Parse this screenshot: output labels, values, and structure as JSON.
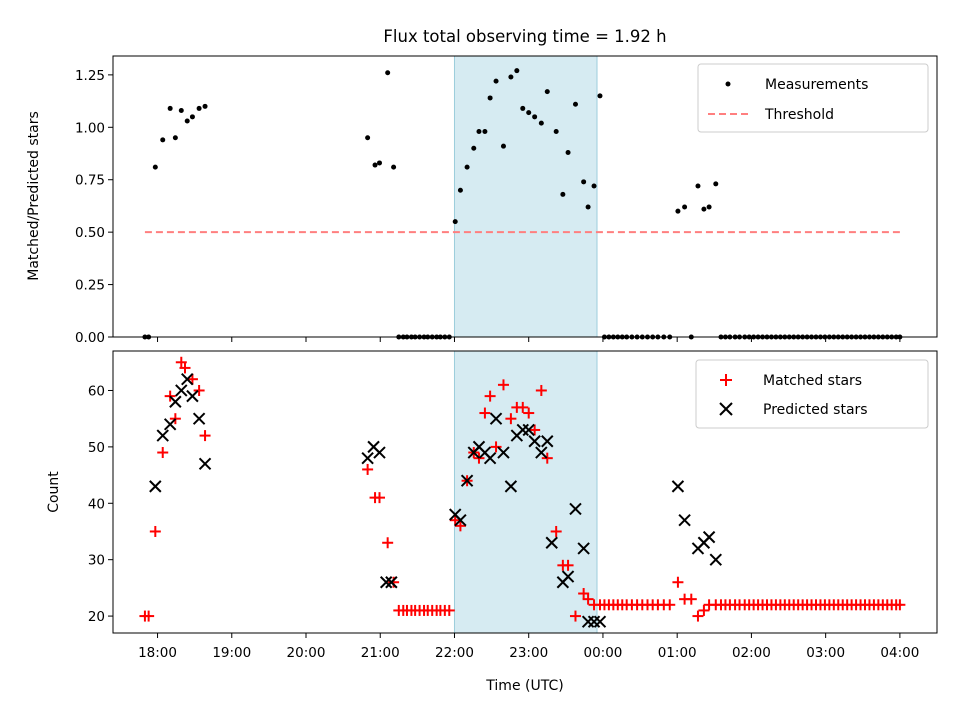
{
  "chart_data": [
    {
      "type": "scatter",
      "title": "Flux total observing time = 1.92 h",
      "ylabel": "Matched/Predicted stars",
      "xlabel": "",
      "xlim": [
        17.4,
        28.5
      ],
      "ylim": [
        0,
        1.34
      ],
      "yticks": [
        0.0,
        0.25,
        0.5,
        0.75,
        1.0,
        1.25
      ],
      "ytick_labels": [
        "0.00",
        "0.25",
        "0.50",
        "0.75",
        "1.00",
        "1.25"
      ],
      "shaded_band": [
        22.0,
        23.92
      ],
      "legend_position": "top-right",
      "series": [
        {
          "name": "Measurements",
          "style": "points",
          "color": "#000000",
          "x": [
            17.83,
            17.88,
            17.97,
            18.07,
            18.17,
            18.24,
            18.32,
            18.4,
            18.47,
            18.56,
            18.64,
            20.83,
            20.93,
            20.99,
            21.1,
            21.18,
            21.25,
            21.31,
            21.36,
            21.42,
            21.47,
            21.53,
            21.59,
            21.64,
            21.7,
            21.76,
            21.81,
            21.87,
            21.93,
            22.01,
            22.08,
            22.17,
            22.26,
            22.33,
            22.41,
            22.48,
            22.56,
            22.66,
            22.76,
            22.84,
            22.92,
            23.0,
            23.08,
            23.17,
            23.25,
            23.37,
            23.46,
            23.53,
            23.63,
            23.74,
            23.8,
            23.88,
            23.96,
            24.02,
            24.08,
            24.14,
            24.2,
            24.26,
            24.32,
            24.39,
            24.46,
            24.53,
            24.6,
            24.67,
            24.74,
            24.82,
            24.9,
            25.01,
            25.1,
            25.19,
            25.28,
            25.36,
            25.43,
            25.52,
            25.59,
            25.65,
            25.71,
            25.78,
            25.84,
            25.91,
            25.97,
            26.03,
            26.09,
            26.15,
            26.21,
            26.27,
            26.33,
            26.39,
            26.45,
            26.51,
            26.57,
            26.63,
            26.69,
            26.75,
            26.81,
            26.87,
            26.93,
            26.99,
            27.05,
            27.11,
            27.17,
            27.23,
            27.29,
            27.35,
            27.41,
            27.47,
            27.53,
            27.59,
            27.65,
            27.71,
            27.77,
            27.83,
            27.89,
            27.95,
            28.0
          ],
          "y": [
            0.0,
            0.0,
            0.81,
            0.94,
            1.09,
            0.95,
            1.08,
            1.03,
            1.05,
            1.09,
            1.1,
            0.95,
            0.82,
            0.83,
            1.26,
            0.81,
            0.0,
            0.0,
            0.0,
            0.0,
            0.0,
            0.0,
            0.0,
            0.0,
            0.0,
            0.0,
            0.0,
            0.0,
            0.0,
            0.55,
            0.7,
            0.81,
            0.9,
            0.98,
            0.98,
            1.14,
            1.22,
            0.91,
            1.24,
            1.27,
            1.09,
            1.07,
            1.05,
            1.02,
            1.17,
            0.98,
            0.68,
            0.88,
            1.11,
            0.74,
            0.62,
            0.72,
            1.15,
            0.0,
            0.0,
            0.0,
            0.0,
            0.0,
            0.0,
            0.0,
            0.0,
            0.0,
            0.0,
            0.0,
            0.0,
            0.0,
            0.0,
            0.6,
            0.62,
            0.0,
            0.72,
            0.61,
            0.62,
            0.73,
            0.0,
            0.0,
            0.0,
            0.0,
            0.0,
            0.0,
            0.0,
            0.0,
            0.0,
            0.0,
            0.0,
            0.0,
            0.0,
            0.0,
            0.0,
            0.0,
            0.0,
            0.0,
            0.0,
            0.0,
            0.0,
            0.0,
            0.0,
            0.0,
            0.0,
            0.0,
            0.0,
            0.0,
            0.0,
            0.0,
            0.0,
            0.0,
            0.0,
            0.0,
            0.0,
            0.0,
            0.0,
            0.0,
            0.0,
            0.0,
            0.0
          ]
        },
        {
          "name": "Threshold",
          "style": "dashed-line",
          "color": "#ff7f7f",
          "x": [
            17.83,
            28.0
          ],
          "y": [
            0.5,
            0.5
          ]
        }
      ]
    },
    {
      "type": "scatter",
      "title": "",
      "ylabel": "Count",
      "xlabel": "Time (UTC)",
      "xlim": [
        17.4,
        28.5
      ],
      "ylim": [
        17,
        67
      ],
      "yticks": [
        20,
        30,
        40,
        50,
        60
      ],
      "ytick_labels": [
        "20",
        "30",
        "40",
        "50",
        "60"
      ],
      "xticks": [
        18,
        19,
        20,
        21,
        22,
        23,
        24,
        25,
        26,
        27,
        28
      ],
      "xtick_labels": [
        "18:00",
        "19:00",
        "20:00",
        "21:00",
        "22:00",
        "23:00",
        "00:00",
        "01:00",
        "02:00",
        "03:00",
        "04:00"
      ],
      "shaded_band": [
        22.0,
        23.92
      ],
      "legend_position": "top-right",
      "series": [
        {
          "name": "Matched stars",
          "marker": "plus",
          "color": "#ff0000",
          "x": [
            17.83,
            17.88,
            17.97,
            18.07,
            18.17,
            18.24,
            18.32,
            18.37,
            18.47,
            18.56,
            18.64,
            20.83,
            20.93,
            20.99,
            21.1,
            21.18,
            21.25,
            21.31,
            21.36,
            21.42,
            21.47,
            21.53,
            21.59,
            21.64,
            21.7,
            21.76,
            21.81,
            21.87,
            21.93,
            22.01,
            22.08,
            22.17,
            22.26,
            22.33,
            22.41,
            22.48,
            22.56,
            22.66,
            22.76,
            22.84,
            22.92,
            23.0,
            23.08,
            23.17,
            23.25,
            23.37,
            23.46,
            23.53,
            23.63,
            23.74,
            23.8,
            23.88,
            23.96,
            24.02,
            24.08,
            24.14,
            24.2,
            24.26,
            24.32,
            24.39,
            24.46,
            24.53,
            24.6,
            24.67,
            24.74,
            24.82,
            24.9,
            25.01,
            25.1,
            25.19,
            25.28,
            25.36,
            25.43,
            25.52,
            25.59,
            25.65,
            25.71,
            25.78,
            25.84,
            25.91,
            25.97,
            26.03,
            26.09,
            26.15,
            26.21,
            26.27,
            26.33,
            26.39,
            26.45,
            26.51,
            26.57,
            26.63,
            26.69,
            26.75,
            26.81,
            26.87,
            26.93,
            26.99,
            27.05,
            27.11,
            27.17,
            27.23,
            27.29,
            27.35,
            27.41,
            27.47,
            27.53,
            27.59,
            27.65,
            27.71,
            27.77,
            27.83,
            27.89,
            27.95,
            28.0
          ],
          "y": [
            20,
            20,
            35,
            49,
            59,
            55,
            65,
            64,
            62,
            60,
            52,
            46,
            41,
            41,
            33,
            26,
            21,
            21,
            21,
            21,
            21,
            21,
            21,
            21,
            21,
            21,
            21,
            21,
            21,
            37,
            36,
            44,
            49,
            48,
            56,
            59,
            50,
            61,
            55,
            57,
            57,
            56,
            53,
            60,
            48,
            35,
            29,
            29,
            20,
            24,
            23,
            22,
            22,
            22,
            22,
            22,
            22,
            22,
            22,
            22,
            22,
            22,
            22,
            22,
            22,
            22,
            22,
            26,
            23,
            23,
            20,
            21,
            22,
            22,
            22,
            22,
            22,
            22,
            22,
            22,
            22,
            22,
            22,
            22,
            22,
            22,
            22,
            22,
            22,
            22,
            22,
            22,
            22,
            22,
            22,
            22,
            22,
            22,
            22,
            22,
            22,
            22,
            22,
            22,
            22,
            22,
            22,
            22,
            22,
            22,
            22,
            22,
            22,
            22,
            22
          ]
        },
        {
          "name": "Predicted stars",
          "marker": "x",
          "color": "#000000",
          "x": [
            17.97,
            18.07,
            18.17,
            18.24,
            18.32,
            18.4,
            18.47,
            18.56,
            18.64,
            20.83,
            20.91,
            20.99,
            21.08,
            21.15,
            22.01,
            22.08,
            22.17,
            22.26,
            22.33,
            22.41,
            22.48,
            22.56,
            22.66,
            22.76,
            22.84,
            22.92,
            23.0,
            23.08,
            23.17,
            23.25,
            23.31,
            23.46,
            23.53,
            23.63,
            23.74,
            23.8,
            23.88,
            23.96,
            25.01,
            25.1,
            25.28,
            25.36,
            25.43,
            25.52
          ],
          "y": [
            43,
            52,
            54,
            58,
            60,
            62,
            59,
            55,
            47,
            48,
            50,
            49,
            26,
            26,
            38,
            37,
            44,
            49,
            50,
            49,
            48,
            55,
            49,
            43,
            52,
            53,
            53,
            51,
            49,
            51,
            33,
            26,
            27,
            39,
            32,
            19,
            19,
            19,
            43,
            37,
            32,
            33,
            34,
            30
          ]
        }
      ]
    }
  ],
  "legend": {
    "top": [
      "Measurements",
      "Threshold"
    ],
    "bottom": [
      "Matched stars",
      "Predicted stars"
    ]
  },
  "colors": {
    "band": "#add8e6",
    "measurements": "#000000",
    "threshold": "#ff7f7f",
    "matched": "#ff0000",
    "predicted": "#000000"
  }
}
